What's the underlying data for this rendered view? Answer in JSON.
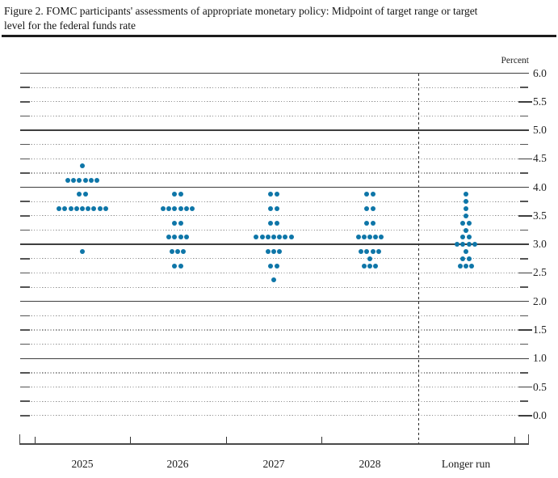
{
  "title": "Figure 2. FOMC participants' assessments of appropriate monetary policy: Midpoint of target range or target level for the federal funds rate",
  "chart_data": {
    "type": "scatter",
    "subtype": "fomc-dot-plot",
    "title": "Figure 2. FOMC participants' assessments of appropriate monetary policy: Midpoint of target range or target level for the federal funds rate",
    "y_unit_label": "Percent",
    "y_axis": {
      "min": 0.0,
      "max": 6.0,
      "label_step": 0.5,
      "grid_step": 0.25,
      "tick_labels": [
        "6.0",
        "5.5",
        "5.0",
        "4.5",
        "4.0",
        "3.5",
        "3.0",
        "2.5",
        "2.0",
        "1.5",
        "1.0",
        "0.5",
        "0.0"
      ],
      "solid_lines_at_integers": true,
      "dotted_lines_at_quarters": true
    },
    "categories": [
      "2025",
      "2026",
      "2027",
      "2028",
      "Longer run"
    ],
    "series": [
      {
        "category": "2025",
        "dots": [
          {
            "value": 4.375,
            "count": 1
          },
          {
            "value": 4.125,
            "count": 6
          },
          {
            "value": 3.875,
            "count": 2
          },
          {
            "value": 3.625,
            "count": 9
          },
          {
            "value": 2.875,
            "count": 1
          }
        ]
      },
      {
        "category": "2026",
        "dots": [
          {
            "value": 3.875,
            "count": 2
          },
          {
            "value": 3.625,
            "count": 6
          },
          {
            "value": 3.375,
            "count": 2
          },
          {
            "value": 3.125,
            "count": 4
          },
          {
            "value": 2.875,
            "count": 3
          },
          {
            "value": 2.625,
            "count": 2
          }
        ]
      },
      {
        "category": "2027",
        "dots": [
          {
            "value": 3.875,
            "count": 2
          },
          {
            "value": 3.625,
            "count": 2
          },
          {
            "value": 3.375,
            "count": 2
          },
          {
            "value": 3.125,
            "count": 7
          },
          {
            "value": 2.875,
            "count": 3
          },
          {
            "value": 2.625,
            "count": 2
          },
          {
            "value": 2.375,
            "count": 1
          }
        ]
      },
      {
        "category": "2028",
        "dots": [
          {
            "value": 3.875,
            "count": 2
          },
          {
            "value": 3.625,
            "count": 2
          },
          {
            "value": 3.375,
            "count": 2
          },
          {
            "value": 3.125,
            "count": 5
          },
          {
            "value": 2.875,
            "count": 4
          },
          {
            "value": 2.75,
            "count": 1
          },
          {
            "value": 2.625,
            "count": 3
          }
        ]
      },
      {
        "category": "Longer run",
        "dots": [
          {
            "value": 3.875,
            "count": 1
          },
          {
            "value": 3.75,
            "count": 1
          },
          {
            "value": 3.625,
            "count": 1
          },
          {
            "value": 3.5,
            "count": 1
          },
          {
            "value": 3.375,
            "count": 2
          },
          {
            "value": 3.25,
            "count": 1
          },
          {
            "value": 3.125,
            "count": 2
          },
          {
            "value": 3.0,
            "count": 4
          },
          {
            "value": 2.875,
            "count": 1
          },
          {
            "value": 2.75,
            "count": 2
          },
          {
            "value": 2.625,
            "count": 3
          }
        ]
      }
    ],
    "participants_per_column": 19,
    "dot_color": "#0e76a8",
    "separator": {
      "between": [
        "2028",
        "Longer run"
      ],
      "style": "dashed-vertical"
    }
  }
}
